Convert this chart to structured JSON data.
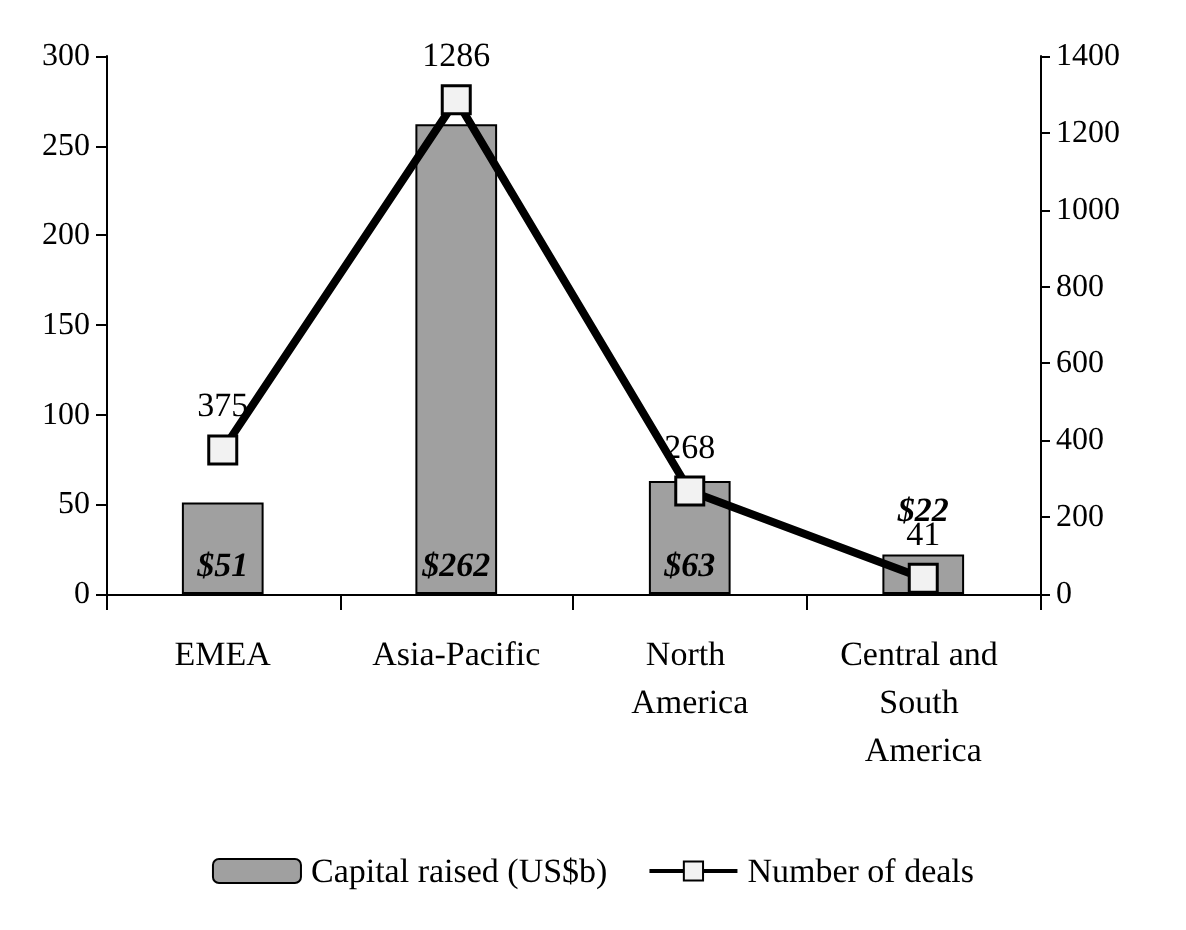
{
  "chart_data": {
    "type": "bar",
    "categories": [
      "EMEA",
      "Asia-Pacific",
      "North America",
      "Central and South America"
    ],
    "series": [
      {
        "name": "Capital raised (US$b)",
        "color": "#a0a0a0",
        "values": [
          51,
          262,
          63,
          22
        ],
        "value_labels": [
          "$51",
          "$262",
          "$63",
          "$22"
        ]
      },
      {
        "name": "Number of deals",
        "type": "line",
        "axis": "y2",
        "color": "#000000",
        "values": [
          375,
          1286,
          268,
          41
        ],
        "value_labels": [
          "375",
          "1286",
          "268",
          "41"
        ],
        "marker": "square"
      }
    ],
    "ylim": [
      0,
      300
    ],
    "yticks": [
      0,
      50,
      100,
      150,
      200,
      250,
      300
    ],
    "y2lim": [
      0,
      1400
    ],
    "y2ticks": [
      0,
      200,
      400,
      600,
      800,
      1000,
      1200,
      1400
    ],
    "grid": false,
    "legend": "bottom"
  }
}
